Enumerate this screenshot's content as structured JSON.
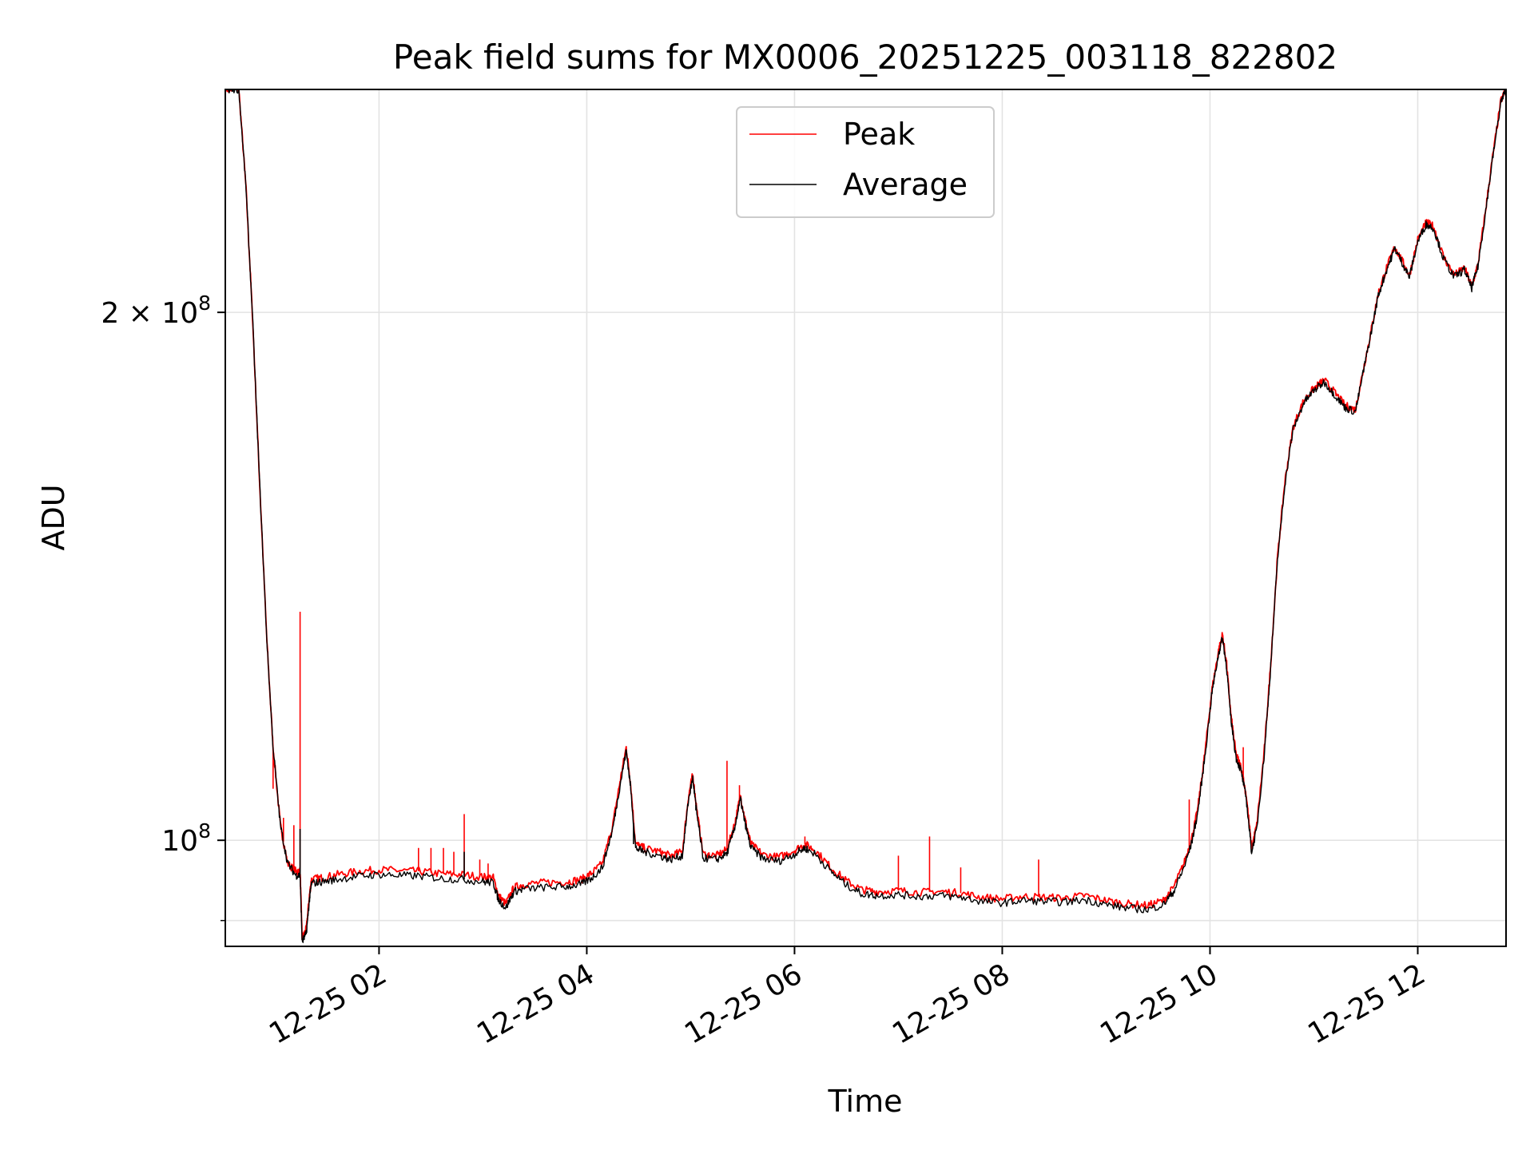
{
  "chart_data": {
    "type": "line",
    "title": "Peak field sums for MX0006_20251225_003118_822802",
    "xlabel": "Time",
    "ylabel": "ADU",
    "yscale": "log",
    "xlim_hours": [
      0.52,
      12.85
    ],
    "ylim": [
      87000000,
      268000000
    ],
    "grid": true,
    "legend_position": "top-center",
    "x_ticks": [
      {
        "hour": 2,
        "label": "12-25 02"
      },
      {
        "hour": 4,
        "label": "12-25 04"
      },
      {
        "hour": 6,
        "label": "12-25 06"
      },
      {
        "hour": 8,
        "label": "12-25 08"
      },
      {
        "hour": 10,
        "label": "12-25 10"
      },
      {
        "hour": 12,
        "label": "12-25 12"
      }
    ],
    "y_ticks": [
      {
        "value": 100000000,
        "label": "10⁸",
        "base": "10",
        "exp": "8"
      },
      {
        "value": 200000000,
        "label": "2 × 10⁸",
        "base": "2 × 10",
        "exp": "8"
      }
    ],
    "y_minor_ticks": [
      90000000
    ],
    "series": [
      {
        "name": "Peak",
        "color": "#ff0000",
        "points": [
          [
            0.52,
            268000000
          ],
          [
            0.65,
            268000000
          ],
          [
            0.72,
            235000000
          ],
          [
            0.78,
            200000000
          ],
          [
            0.85,
            160000000
          ],
          [
            0.92,
            130000000
          ],
          [
            0.98,
            113000000
          ],
          [
            1.05,
            102000000
          ],
          [
            1.12,
            97000000
          ],
          [
            1.2,
            96000000
          ],
          [
            1.24,
            96000000
          ],
          [
            1.26,
            88000000
          ],
          [
            1.3,
            89000000
          ],
          [
            1.33,
            93000000
          ],
          [
            1.35,
            95000000
          ],
          [
            1.45,
            95200000
          ],
          [
            1.6,
            95600000
          ],
          [
            1.8,
            96000000
          ],
          [
            2.0,
            96200000
          ],
          [
            2.2,
            96100000
          ],
          [
            2.4,
            96000000
          ],
          [
            2.6,
            95700000
          ],
          [
            2.8,
            95600000
          ],
          [
            3.0,
            95300000
          ],
          [
            3.1,
            95200000
          ],
          [
            3.15,
            93000000
          ],
          [
            3.22,
            92000000
          ],
          [
            3.3,
            94000000
          ],
          [
            3.4,
            94400000
          ],
          [
            3.6,
            94600000
          ],
          [
            3.8,
            94700000
          ],
          [
            3.95,
            95000000
          ],
          [
            4.05,
            95800000
          ],
          [
            4.15,
            97000000
          ],
          [
            4.25,
            102000000
          ],
          [
            4.32,
            108000000
          ],
          [
            4.38,
            113000000
          ],
          [
            4.42,
            108000000
          ],
          [
            4.47,
            99500000
          ],
          [
            4.55,
            99000000
          ],
          [
            4.7,
            98500000
          ],
          [
            4.8,
            98000000
          ],
          [
            4.92,
            98500000
          ],
          [
            4.98,
            106000000
          ],
          [
            5.02,
            109000000
          ],
          [
            5.06,
            104000000
          ],
          [
            5.12,
            98200000
          ],
          [
            5.25,
            98000000
          ],
          [
            5.35,
            98800000
          ],
          [
            5.42,
            102000000
          ],
          [
            5.48,
            106000000
          ],
          [
            5.52,
            103000000
          ],
          [
            5.58,
            99500000
          ],
          [
            5.7,
            98100000
          ],
          [
            5.85,
            97800000
          ],
          [
            6.0,
            98700000
          ],
          [
            6.1,
            99500000
          ],
          [
            6.2,
            98700000
          ],
          [
            6.35,
            96500000
          ],
          [
            6.5,
            94800000
          ],
          [
            6.65,
            93700000
          ],
          [
            6.8,
            93500000
          ],
          [
            7.0,
            93600000
          ],
          [
            7.2,
            93400000
          ],
          [
            7.4,
            93500000
          ],
          [
            7.6,
            93300000
          ],
          [
            7.8,
            92800000
          ],
          [
            8.0,
            92600000
          ],
          [
            8.2,
            92900000
          ],
          [
            8.4,
            92800000
          ],
          [
            8.6,
            92700000
          ],
          [
            8.8,
            93000000
          ],
          [
            9.0,
            92400000
          ],
          [
            9.2,
            92000000
          ],
          [
            9.4,
            91800000
          ],
          [
            9.55,
            92400000
          ],
          [
            9.65,
            94000000
          ],
          [
            9.75,
            97000000
          ],
          [
            9.82,
            100000000
          ],
          [
            9.88,
            104000000
          ],
          [
            9.95,
            112000000
          ],
          [
            10.02,
            122000000
          ],
          [
            10.08,
            128000000
          ],
          [
            10.12,
            131000000
          ],
          [
            10.16,
            126000000
          ],
          [
            10.2,
            118000000
          ],
          [
            10.25,
            112000000
          ],
          [
            10.3,
            110000000
          ],
          [
            10.35,
            106000000
          ],
          [
            10.4,
            99000000
          ],
          [
            10.45,
            102000000
          ],
          [
            10.52,
            112000000
          ],
          [
            10.58,
            125000000
          ],
          [
            10.65,
            145000000
          ],
          [
            10.72,
            160000000
          ],
          [
            10.8,
            172000000
          ],
          [
            10.9,
            178000000
          ],
          [
            11.0,
            181000000
          ],
          [
            11.1,
            183000000
          ],
          [
            11.2,
            180000000
          ],
          [
            11.3,
            177000000
          ],
          [
            11.4,
            176000000
          ],
          [
            11.48,
            186000000
          ],
          [
            11.55,
            195000000
          ],
          [
            11.62,
            205000000
          ],
          [
            11.7,
            212000000
          ],
          [
            11.78,
            218000000
          ],
          [
            11.85,
            214000000
          ],
          [
            11.92,
            210000000
          ],
          [
            12.0,
            220000000
          ],
          [
            12.08,
            225000000
          ],
          [
            12.15,
            224000000
          ],
          [
            12.25,
            215000000
          ],
          [
            12.35,
            210000000
          ],
          [
            12.45,
            212000000
          ],
          [
            12.52,
            207000000
          ],
          [
            12.58,
            213000000
          ],
          [
            12.65,
            228000000
          ],
          [
            12.72,
            245000000
          ],
          [
            12.8,
            264000000
          ],
          [
            12.85,
            268000000
          ]
        ],
        "spikes": [
          [
            1.24,
            135000000
          ],
          [
            0.98,
            107000000
          ],
          [
            1.08,
            103000000
          ],
          [
            1.18,
            102000000
          ],
          [
            2.38,
            99000000
          ],
          [
            2.5,
            99000000
          ],
          [
            2.62,
            99000000
          ],
          [
            2.72,
            98500000
          ],
          [
            2.82,
            103500000
          ],
          [
            2.97,
            97500000
          ],
          [
            3.05,
            97000000
          ],
          [
            5.35,
            111000000
          ],
          [
            5.47,
            107500000
          ],
          [
            6.1,
            100500000
          ],
          [
            7.0,
            98000000
          ],
          [
            7.3,
            100500000
          ],
          [
            7.6,
            96500000
          ],
          [
            8.35,
            97500000
          ],
          [
            9.8,
            105500000
          ],
          [
            9.9,
            106000000
          ],
          [
            10.1,
            129000000
          ],
          [
            10.32,
            113000000
          ]
        ]
      },
      {
        "name": "Average",
        "color": "#000000",
        "points": [
          [
            0.52,
            268000000
          ],
          [
            0.65,
            268000000
          ],
          [
            0.72,
            235000000
          ],
          [
            0.78,
            200000000
          ],
          [
            0.85,
            160000000
          ],
          [
            0.92,
            130000000
          ],
          [
            0.98,
            113000000
          ],
          [
            1.05,
            102000000
          ],
          [
            1.12,
            97000000
          ],
          [
            1.2,
            95500000
          ],
          [
            1.24,
            95500000
          ],
          [
            1.26,
            87500000
          ],
          [
            1.3,
            88500000
          ],
          [
            1.33,
            92500000
          ],
          [
            1.35,
            94500000
          ],
          [
            1.45,
            94700000
          ],
          [
            1.6,
            95000000
          ],
          [
            1.8,
            95400000
          ],
          [
            2.0,
            95600000
          ],
          [
            2.2,
            95500000
          ],
          [
            2.4,
            95400000
          ],
          [
            2.6,
            95100000
          ],
          [
            2.8,
            95000000
          ],
          [
            3.0,
            94700000
          ],
          [
            3.1,
            94600000
          ],
          [
            3.15,
            92500000
          ],
          [
            3.22,
            91500000
          ],
          [
            3.3,
            93500000
          ],
          [
            3.4,
            93800000
          ],
          [
            3.6,
            94000000
          ],
          [
            3.8,
            94100000
          ],
          [
            3.95,
            94400000
          ],
          [
            4.05,
            95200000
          ],
          [
            4.15,
            96500000
          ],
          [
            4.25,
            101500000
          ],
          [
            4.32,
            107500000
          ],
          [
            4.38,
            112500000
          ],
          [
            4.42,
            107500000
          ],
          [
            4.47,
            99000000
          ],
          [
            4.55,
            98500000
          ],
          [
            4.7,
            98000000
          ],
          [
            4.8,
            97500000
          ],
          [
            4.92,
            98000000
          ],
          [
            4.98,
            105500000
          ],
          [
            5.02,
            108500000
          ],
          [
            5.06,
            103500000
          ],
          [
            5.12,
            97700000
          ],
          [
            5.25,
            97500000
          ],
          [
            5.35,
            98300000
          ],
          [
            5.42,
            101500000
          ],
          [
            5.48,
            105500000
          ],
          [
            5.52,
            102500000
          ],
          [
            5.58,
            99000000
          ],
          [
            5.7,
            97600000
          ],
          [
            5.85,
            97300000
          ],
          [
            6.0,
            98200000
          ],
          [
            6.1,
            99000000
          ],
          [
            6.2,
            98200000
          ],
          [
            6.35,
            96000000
          ],
          [
            6.5,
            94300000
          ],
          [
            6.65,
            93200000
          ],
          [
            6.8,
            93000000
          ],
          [
            7.0,
            93100000
          ],
          [
            7.2,
            92900000
          ],
          [
            7.4,
            93000000
          ],
          [
            7.6,
            92800000
          ],
          [
            7.8,
            92300000
          ],
          [
            8.0,
            92100000
          ],
          [
            8.2,
            92400000
          ],
          [
            8.4,
            92300000
          ],
          [
            8.6,
            92200000
          ],
          [
            8.8,
            92500000
          ],
          [
            9.0,
            91900000
          ],
          [
            9.2,
            91500000
          ],
          [
            9.4,
            91300000
          ],
          [
            9.55,
            91900000
          ],
          [
            9.65,
            93500000
          ],
          [
            9.75,
            96500000
          ],
          [
            9.82,
            99500000
          ],
          [
            9.88,
            103500000
          ],
          [
            9.95,
            111500000
          ],
          [
            10.02,
            121500000
          ],
          [
            10.08,
            127500000
          ],
          [
            10.12,
            130500000
          ],
          [
            10.16,
            125500000
          ],
          [
            10.2,
            117500000
          ],
          [
            10.25,
            111500000
          ],
          [
            10.3,
            109500000
          ],
          [
            10.35,
            105500000
          ],
          [
            10.4,
            98500000
          ],
          [
            10.45,
            101500000
          ],
          [
            10.52,
            111500000
          ],
          [
            10.58,
            124500000
          ],
          [
            10.65,
            144500000
          ],
          [
            10.72,
            159500000
          ],
          [
            10.8,
            171500000
          ],
          [
            10.9,
            177500000
          ],
          [
            11.0,
            180500000
          ],
          [
            11.1,
            182500000
          ],
          [
            11.2,
            179500000
          ],
          [
            11.3,
            176500000
          ],
          [
            11.4,
            175500000
          ],
          [
            11.48,
            185500000
          ],
          [
            11.55,
            194500000
          ],
          [
            11.62,
            204500000
          ],
          [
            11.7,
            211500000
          ],
          [
            11.78,
            217500000
          ],
          [
            11.85,
            213500000
          ],
          [
            11.92,
            209500000
          ],
          [
            12.0,
            219500000
          ],
          [
            12.08,
            224500000
          ],
          [
            12.15,
            223500000
          ],
          [
            12.25,
            214500000
          ],
          [
            12.35,
            209500000
          ],
          [
            12.45,
            211500000
          ],
          [
            12.52,
            206500000
          ],
          [
            12.58,
            212500000
          ],
          [
            12.65,
            227500000
          ],
          [
            12.72,
            244500000
          ],
          [
            12.8,
            263500000
          ],
          [
            12.85,
            268000000
          ]
        ],
        "spikes": [
          [
            1.24,
            101500000
          ],
          [
            2.82,
            98500000
          ],
          [
            4.45,
            99500000
          ],
          [
            5.05,
            104000000
          ]
        ]
      }
    ]
  }
}
